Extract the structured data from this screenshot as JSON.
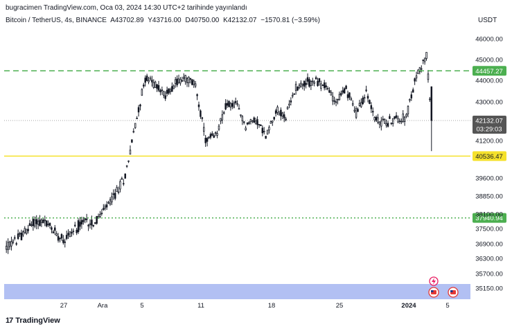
{
  "header": {
    "publish_line": "bugracimen TradingView.com, Oca 03, 2024 14:30 UTC+2 tarihinde yayınlandı"
  },
  "legend": {
    "symbol": "Bitcoin / TetherUS, 4s, BINANCE",
    "open": "A43702.89",
    "high": "Y43716.00",
    "low": "D40750.00",
    "close": "K42132.07",
    "change": "−1570.81 (−3.59%)"
  },
  "currency": "USDT",
  "footer": {
    "logo_text": "TradingView",
    "logo_mark": "17"
  },
  "chart_data": {
    "type": "candlestick",
    "price_axis_ticks": [
      46000,
      45000,
      44000,
      43000,
      41200,
      39600,
      38850,
      38100,
      37500,
      36900,
      36300,
      35700,
      35150
    ],
    "price_axis_labels": [
      "46000.00",
      "45000.00",
      "44000.00",
      "43000.00",
      "41200.00",
      "39600.00",
      "38850.00",
      "38100.00",
      "37500.00",
      "36900.00",
      "36300.00",
      "35700.00",
      "35150.00"
    ],
    "time_axis_labels": [
      {
        "label": "27",
        "bold": false
      },
      {
        "label": "Ara",
        "bold": false
      },
      {
        "label": "5",
        "bold": false
      },
      {
        "label": "11",
        "bold": false
      },
      {
        "label": "18",
        "bold": false
      },
      {
        "label": "25",
        "bold": false
      },
      {
        "label": "2024",
        "bold": true
      },
      {
        "label": "5",
        "bold": false
      }
    ],
    "horizontal_levels": [
      {
        "price": 44457.27,
        "label": "44457.27",
        "color": "#4caf50",
        "style": "dashed"
      },
      {
        "price": 40536.47,
        "label": "40536.47",
        "color": "#f5e12b",
        "style": "solid"
      },
      {
        "price": 37940.94,
        "label": "37940.94",
        "color": "#4caf50",
        "style": "dotted"
      }
    ],
    "last_price": {
      "price": 42132.07,
      "label": "42132.07",
      "countdown": "03:29:03",
      "color": "#555555"
    },
    "zone": {
      "from": 34900,
      "to": 35350,
      "color": "#aab9f2"
    },
    "series": [
      {
        "date": "Nov 22",
        "close": 37000
      },
      {
        "date": "Nov 23",
        "close": 37350
      },
      {
        "date": "Nov 24",
        "close": 37800
      },
      {
        "date": "Nov 25",
        "close": 37750
      },
      {
        "date": "Nov 26",
        "close": 37350
      },
      {
        "date": "Nov 27",
        "close": 37100
      },
      {
        "date": "Nov 28",
        "close": 37500
      },
      {
        "date": "Nov 29",
        "close": 37800
      },
      {
        "date": "Nov 30",
        "close": 37750
      },
      {
        "date": "Dec 01",
        "close": 38300
      },
      {
        "date": "Dec 02",
        "close": 38900
      },
      {
        "date": "Dec 03",
        "close": 39700
      },
      {
        "date": "Dec 04",
        "close": 41900
      },
      {
        "date": "Dec 05",
        "close": 44100
      },
      {
        "date": "Dec 06",
        "close": 43800
      },
      {
        "date": "Dec 07",
        "close": 43300
      },
      {
        "date": "Dec 08",
        "close": 43900
      },
      {
        "date": "Dec 09",
        "close": 44100
      },
      {
        "date": "Dec 10",
        "close": 43800
      },
      {
        "date": "Dec 11",
        "close": 41200
      },
      {
        "date": "Dec 12",
        "close": 41400
      },
      {
        "date": "Dec 13",
        "close": 42800
      },
      {
        "date": "Dec 14",
        "close": 42900
      },
      {
        "date": "Dec 15",
        "close": 41900
      },
      {
        "date": "Dec 16",
        "close": 42200
      },
      {
        "date": "Dec 17",
        "close": 41400
      },
      {
        "date": "Dec 18",
        "close": 42600
      },
      {
        "date": "Dec 19",
        "close": 42300
      },
      {
        "date": "Dec 20",
        "close": 43700
      },
      {
        "date": "Dec 21",
        "close": 43900
      },
      {
        "date": "Dec 22",
        "close": 43950
      },
      {
        "date": "Dec 23",
        "close": 43700
      },
      {
        "date": "Dec 24",
        "close": 43000
      },
      {
        "date": "Dec 25",
        "close": 43600
      },
      {
        "date": "Dec 26",
        "close": 42500
      },
      {
        "date": "Dec 27",
        "close": 43400
      },
      {
        "date": "Dec 28",
        "close": 42100
      },
      {
        "date": "Dec 29",
        "close": 42050
      },
      {
        "date": "Dec 30",
        "close": 42200
      },
      {
        "date": "Dec 31",
        "close": 42300
      },
      {
        "date": "Jan 01",
        "close": 44200
      },
      {
        "date": "Jan 02",
        "close": 45200
      },
      {
        "date": "Jan 03",
        "close": 42132.07
      }
    ]
  }
}
